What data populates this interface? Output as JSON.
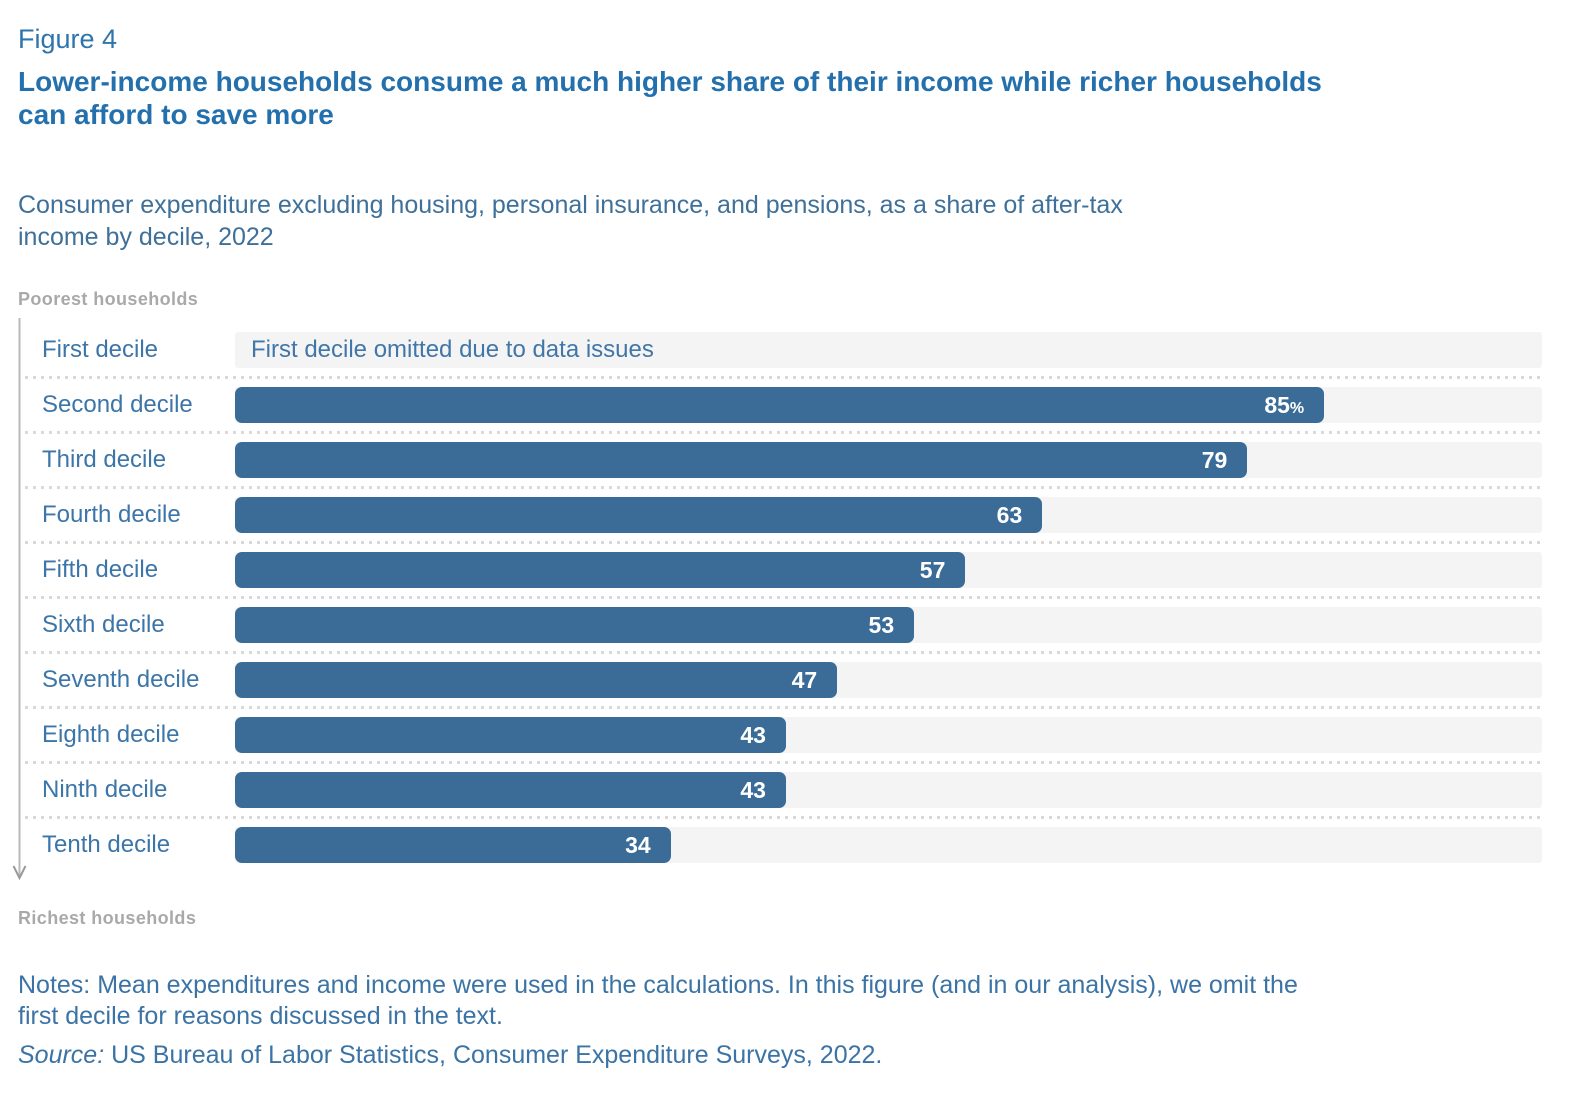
{
  "figure_label": "Figure 4",
  "title": {
    "text": "Lower-income households consume a much higher share of their income while richer households can afford to save more",
    "lines": [
      "Lower-income households consume a much higher share of their income while richer households",
      "can afford to save more"
    ]
  },
  "subtitle": {
    "text": "Consumer expenditure excluding housing, personal insurance, and pensions, as a share of after-tax income by decile, 2022",
    "lines": [
      "Consumer expenditure excluding housing, personal insurance, and pensions, as a share of after-tax",
      "income by decile, 2022"
    ]
  },
  "chart_data": {
    "type": "bar",
    "orientation": "horizontal",
    "title": "Consumer expenditure excluding housing, personal insurance, and pensions, as a share of after-tax income by decile, 2022",
    "axis_top_label": "Poorest households",
    "axis_bottom_label": "Richest households",
    "categories": [
      "First decile",
      "Second decile",
      "Third decile",
      "Fourth decile",
      "Fifth decile",
      "Sixth decile",
      "Seventh decile",
      "Eighth decile",
      "Ninth decile",
      "Tenth decile"
    ],
    "values": [
      null,
      85,
      79,
      63,
      57,
      53,
      47,
      43,
      43,
      34
    ],
    "value_labels": [
      "",
      "85%",
      "79",
      "63",
      "57",
      "53",
      "47",
      "43",
      "43",
      "34"
    ],
    "omitted_note": "First decile omitted due to data issues",
    "xlim": [
      0,
      102
    ],
    "grid": false,
    "legend": false
  },
  "notes": {
    "text": "Notes: Mean expenditures and income were used in the calculations. In this figure (and in our analysis), we omit the first decile for reasons discussed in the text.",
    "lines": [
      "Notes: Mean expenditures and income were used in the calculations. In this figure (and in our analysis), we omit the",
      "first decile for reasons discussed in the text."
    ]
  },
  "source": {
    "label": "Source:",
    "text": " US Bureau of Labor Statistics, Consumer Expenditure Surveys, 2022."
  },
  "colors": {
    "bar": "#3b6c98",
    "bar_track": "#f4f4f4",
    "value_text": "#ffffff",
    "category_label": "#3c75a8",
    "heading": "#2470ad",
    "figure_label": "#2e74ad",
    "subtitle_text": "#3e7099",
    "notes_text": "#3b73a5",
    "axis_gray": "#a9a9a9",
    "separator": "#d9d9d9"
  }
}
